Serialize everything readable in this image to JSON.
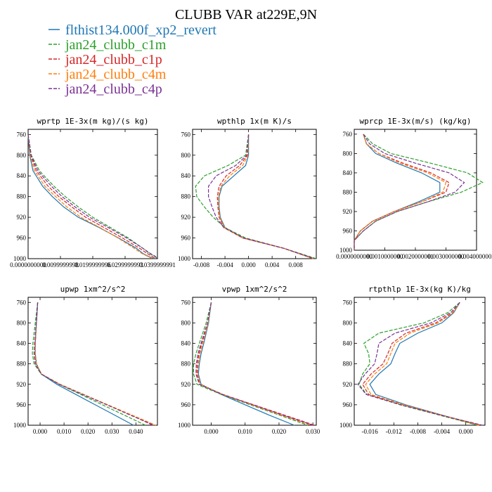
{
  "figure": {
    "title": "CLUBB VAR at229E,9N"
  },
  "legend": [
    {
      "label": "flthist134.000f_xp2_revert",
      "color": "#1f77b4",
      "dash": "solid"
    },
    {
      "label": "jan24_clubb_c1m",
      "color": "#2ca02c",
      "dash": "dash"
    },
    {
      "label": "jan24_clubb_c1p",
      "color": "#d62728",
      "dash": "dash"
    },
    {
      "label": "jan24_clubb_c4m",
      "color": "#ff7f0e",
      "dash": "dash"
    },
    {
      "label": "jan24_clubb_c4p",
      "color": "#7b3294",
      "dash": "dash"
    }
  ],
  "chart_data": [
    {
      "type": "line",
      "title": "wprtp  1E-3x(m kg)/(s kg)",
      "ylim": [
        1000,
        750
      ],
      "yticks": [
        760,
        800,
        840,
        880,
        920,
        960,
        1000
      ],
      "xlim": [
        0.0,
        0.04
      ],
      "xticks": [
        0.0,
        0.01,
        0.02,
        0.03,
        0.04
      ],
      "xticklabels": [
        "0.0000000000",
        "0.0099999998",
        "0.0199999996",
        "0.0299999993",
        "0.0399999991"
      ],
      "y": [
        760,
        800,
        830,
        860,
        880,
        900,
        920,
        940,
        960,
        980,
        990,
        995,
        1000
      ],
      "series": [
        {
          "values": [
            0.0,
            0.0005,
            0.0015,
            0.0045,
            0.0075,
            0.011,
            0.0155,
            0.022,
            0.028,
            0.0335,
            0.0355,
            0.037,
            0.039
          ]
        },
        {
          "values": [
            0.0,
            0.001,
            0.0035,
            0.008,
            0.0115,
            0.0155,
            0.02,
            0.0255,
            0.031,
            0.0355,
            0.0375,
            0.039,
            0.04
          ]
        },
        {
          "values": [
            0.0,
            0.0008,
            0.0025,
            0.0062,
            0.0095,
            0.0135,
            0.0178,
            0.0235,
            0.0292,
            0.0345,
            0.0368,
            0.0382,
            0.0395
          ]
        },
        {
          "values": [
            0.0,
            0.0006,
            0.002,
            0.0052,
            0.0085,
            0.012,
            0.0163,
            0.0222,
            0.0278,
            0.0328,
            0.0352,
            0.0368,
            0.0385
          ]
        },
        {
          "values": [
            0.0,
            0.0009,
            0.003,
            0.0072,
            0.0105,
            0.0145,
            0.019,
            0.0248,
            0.0305,
            0.0355,
            0.0378,
            0.0392,
            0.0402
          ]
        }
      ]
    },
    {
      "type": "line",
      "title": "wpthlp  1x(m K)/s",
      "ylim": [
        1000,
        750
      ],
      "yticks": [
        760,
        800,
        840,
        880,
        920,
        960,
        1000
      ],
      "xlim": [
        -0.0095,
        0.0115
      ],
      "xticks": [
        -0.008,
        -0.004,
        0.0,
        0.004,
        0.008
      ],
      "xticklabels": [
        "-0.008",
        "-0.004",
        "0.000",
        "0.004",
        "0.008"
      ],
      "y": [
        760,
        800,
        820,
        840,
        860,
        880,
        900,
        920,
        940,
        960,
        980,
        1000
      ],
      "series": [
        {
          "values": [
            0.0,
            0.0,
            -0.0005,
            -0.0025,
            -0.0045,
            -0.005,
            -0.005,
            -0.0048,
            -0.004,
            -0.001,
            0.006,
            0.011
          ]
        },
        {
          "values": [
            0.0,
            -0.0005,
            -0.0035,
            -0.0075,
            -0.009,
            -0.0088,
            -0.0075,
            -0.006,
            -0.004,
            -0.0005,
            0.006,
            0.0115
          ]
        },
        {
          "values": [
            0.0,
            -0.0002,
            -0.0015,
            -0.0038,
            -0.005,
            -0.0053,
            -0.0052,
            -0.005,
            -0.0042,
            -0.001,
            0.006,
            0.011
          ]
        },
        {
          "values": [
            0.0,
            -0.0001,
            -0.001,
            -0.0032,
            -0.0047,
            -0.0051,
            -0.0051,
            -0.0049,
            -0.0041,
            -0.001,
            0.006,
            0.011
          ]
        },
        {
          "values": [
            0.0,
            -0.0003,
            -0.0022,
            -0.0055,
            -0.0068,
            -0.0068,
            -0.0062,
            -0.0055,
            -0.0042,
            -0.0008,
            0.006,
            0.0112
          ]
        }
      ]
    },
    {
      "type": "line",
      "title": "wprcp  1E-3x(m/s) (kg/kg)",
      "ylim": [
        1000,
        750
      ],
      "yticks": [
        760,
        800,
        840,
        880,
        920,
        960,
        1000
      ],
      "xlim": [
        0.0,
        0.004
      ],
      "xticks": [
        0.0,
        0.001,
        0.002,
        0.003,
        0.004
      ],
      "xticklabels": [
        "0.0000000000",
        "0.0010000000",
        "0.0020000001",
        "0.0030000000",
        "0.0040000002"
      ],
      "y": [
        760,
        780,
        800,
        820,
        840,
        860,
        880,
        900,
        920,
        940,
        960,
        980,
        1000
      ],
      "series": [
        {
          "values": [
            0.0003,
            0.0004,
            0.0007,
            0.0014,
            0.0022,
            0.0028,
            0.0028,
            0.0021,
            0.0013,
            0.0006,
            0.0002,
            0.0,
            0.0
          ]
        },
        {
          "values": [
            0.0003,
            0.0006,
            0.0012,
            0.0025,
            0.0037,
            0.0042,
            0.0035,
            0.0024,
            0.0014,
            0.0007,
            0.0003,
            0.0,
            0.0
          ]
        },
        {
          "values": [
            0.0003,
            0.0004,
            0.0008,
            0.0016,
            0.0025,
            0.0031,
            0.003,
            0.0022,
            0.0013,
            0.0006,
            0.0002,
            0.0,
            0.0
          ]
        },
        {
          "values": [
            0.0003,
            0.0004,
            0.0008,
            0.0015,
            0.0024,
            0.003,
            0.0029,
            0.0022,
            0.0013,
            0.0006,
            0.0002,
            0.0,
            0.0
          ]
        },
        {
          "values": [
            0.0003,
            0.0005,
            0.001,
            0.002,
            0.0031,
            0.0036,
            0.0033,
            0.0024,
            0.0014,
            0.0007,
            0.0003,
            0.0,
            0.0
          ]
        }
      ]
    },
    {
      "type": "line",
      "title": "upwp  1xm^2/s^2",
      "ylim": [
        1000,
        750
      ],
      "yticks": [
        760,
        800,
        840,
        880,
        920,
        960,
        1000
      ],
      "xlim": [
        -0.005,
        0.049
      ],
      "xticks": [
        0.0,
        0.01,
        0.02,
        0.03,
        0.04
      ],
      "xticklabels": [
        "0.000",
        "0.010",
        "0.020",
        "0.030",
        "0.040"
      ],
      "y": [
        760,
        800,
        840,
        860,
        880,
        900,
        920,
        940,
        960,
        980,
        1000
      ],
      "series": [
        {
          "values": [
            -0.001,
            -0.0015,
            -0.002,
            -0.002,
            -0.0015,
            0.0005,
            0.007,
            0.015,
            0.023,
            0.031,
            0.039
          ]
        },
        {
          "values": [
            -0.001,
            -0.002,
            -0.003,
            -0.0032,
            -0.0025,
            0.0005,
            0.008,
            0.017,
            0.026,
            0.035,
            0.044
          ]
        },
        {
          "values": [
            -0.001,
            -0.0015,
            -0.002,
            -0.0022,
            -0.0017,
            0.0006,
            0.0082,
            0.018,
            0.028,
            0.038,
            0.047
          ]
        },
        {
          "values": [
            -0.001,
            -0.0015,
            -0.002,
            -0.0021,
            -0.0016,
            0.0006,
            0.0084,
            0.0183,
            0.0283,
            0.0383,
            0.0483
          ]
        },
        {
          "values": [
            -0.001,
            -0.0016,
            -0.0023,
            -0.0025,
            -0.002,
            0.0005,
            0.008,
            0.0178,
            0.0278,
            0.0375,
            0.0475
          ]
        }
      ]
    },
    {
      "type": "line",
      "title": "vpwp  1xm^2/s^2",
      "ylim": [
        1000,
        750
      ],
      "yticks": [
        760,
        800,
        840,
        880,
        920,
        960,
        1000
      ],
      "xlim": [
        -0.0055,
        0.031
      ],
      "xticks": [
        0.0,
        0.01,
        0.02,
        0.03
      ],
      "xticklabels": [
        "0.000",
        "0.010",
        "0.020",
        "0.030"
      ],
      "y": [
        760,
        800,
        840,
        860,
        880,
        900,
        920,
        940,
        960,
        980,
        1000
      ],
      "series": [
        {
          "values": [
            0.0,
            -0.0008,
            -0.0022,
            -0.003,
            -0.0035,
            -0.0038,
            -0.003,
            0.003,
            0.01,
            0.017,
            0.0245
          ]
        },
        {
          "values": [
            0.0,
            -0.0015,
            -0.0035,
            -0.0045,
            -0.0052,
            -0.0052,
            -0.0042,
            0.003,
            0.0115,
            0.02,
            0.0285
          ]
        },
        {
          "values": [
            0.0,
            -0.001,
            -0.0028,
            -0.0036,
            -0.0041,
            -0.0042,
            -0.0033,
            0.0035,
            0.0125,
            0.0215,
            0.0305
          ]
        },
        {
          "values": [
            0.0,
            -0.0009,
            -0.0025,
            -0.0033,
            -0.0038,
            -0.004,
            -0.0032,
            0.0033,
            0.012,
            0.0205,
            0.0295
          ]
        },
        {
          "values": [
            0.0,
            -0.0011,
            -0.003,
            -0.0039,
            -0.0044,
            -0.0045,
            -0.0035,
            0.0034,
            0.0123,
            0.021,
            0.03
          ]
        }
      ]
    },
    {
      "type": "line",
      "title": "rtpthlp  1E-3x(kg K)/kg",
      "ylim": [
        1000,
        750
      ],
      "yticks": [
        760,
        800,
        840,
        880,
        920,
        960,
        1000
      ],
      "xlim": [
        -0.0186,
        0.0032
      ],
      "xticks": [
        -0.016,
        -0.012,
        -0.008,
        -0.004,
        0.0
      ],
      "xticklabels": [
        "-0.016",
        "-0.012",
        "-0.008",
        "-0.004",
        "0.000"
      ],
      "y": [
        760,
        780,
        800,
        820,
        840,
        860,
        880,
        900,
        920,
        940,
        960,
        980,
        1000
      ],
      "series": [
        {
          "values": [
            -0.001,
            -0.002,
            -0.004,
            -0.008,
            -0.011,
            -0.0118,
            -0.0125,
            -0.0145,
            -0.016,
            -0.015,
            -0.01,
            -0.004,
            0.002
          ]
        },
        {
          "values": [
            -0.001,
            -0.003,
            -0.007,
            -0.0145,
            -0.017,
            -0.0162,
            -0.016,
            -0.0172,
            -0.0178,
            -0.0165,
            -0.011,
            -0.0045,
            0.002
          ]
        },
        {
          "values": [
            -0.001,
            -0.0022,
            -0.005,
            -0.01,
            -0.0123,
            -0.013,
            -0.0138,
            -0.0158,
            -0.0172,
            -0.0162,
            -0.0105,
            -0.0042,
            0.0025
          ]
        },
        {
          "values": [
            -0.001,
            -0.0021,
            -0.0046,
            -0.0093,
            -0.0118,
            -0.0125,
            -0.0132,
            -0.0152,
            -0.0167,
            -0.0158,
            -0.0103,
            -0.0041,
            0.0022
          ]
        },
        {
          "values": [
            -0.001,
            -0.0025,
            -0.0058,
            -0.0118,
            -0.0145,
            -0.0148,
            -0.0152,
            -0.0168,
            -0.018,
            -0.0166,
            -0.0108,
            -0.0043,
            0.0028
          ]
        }
      ]
    }
  ]
}
